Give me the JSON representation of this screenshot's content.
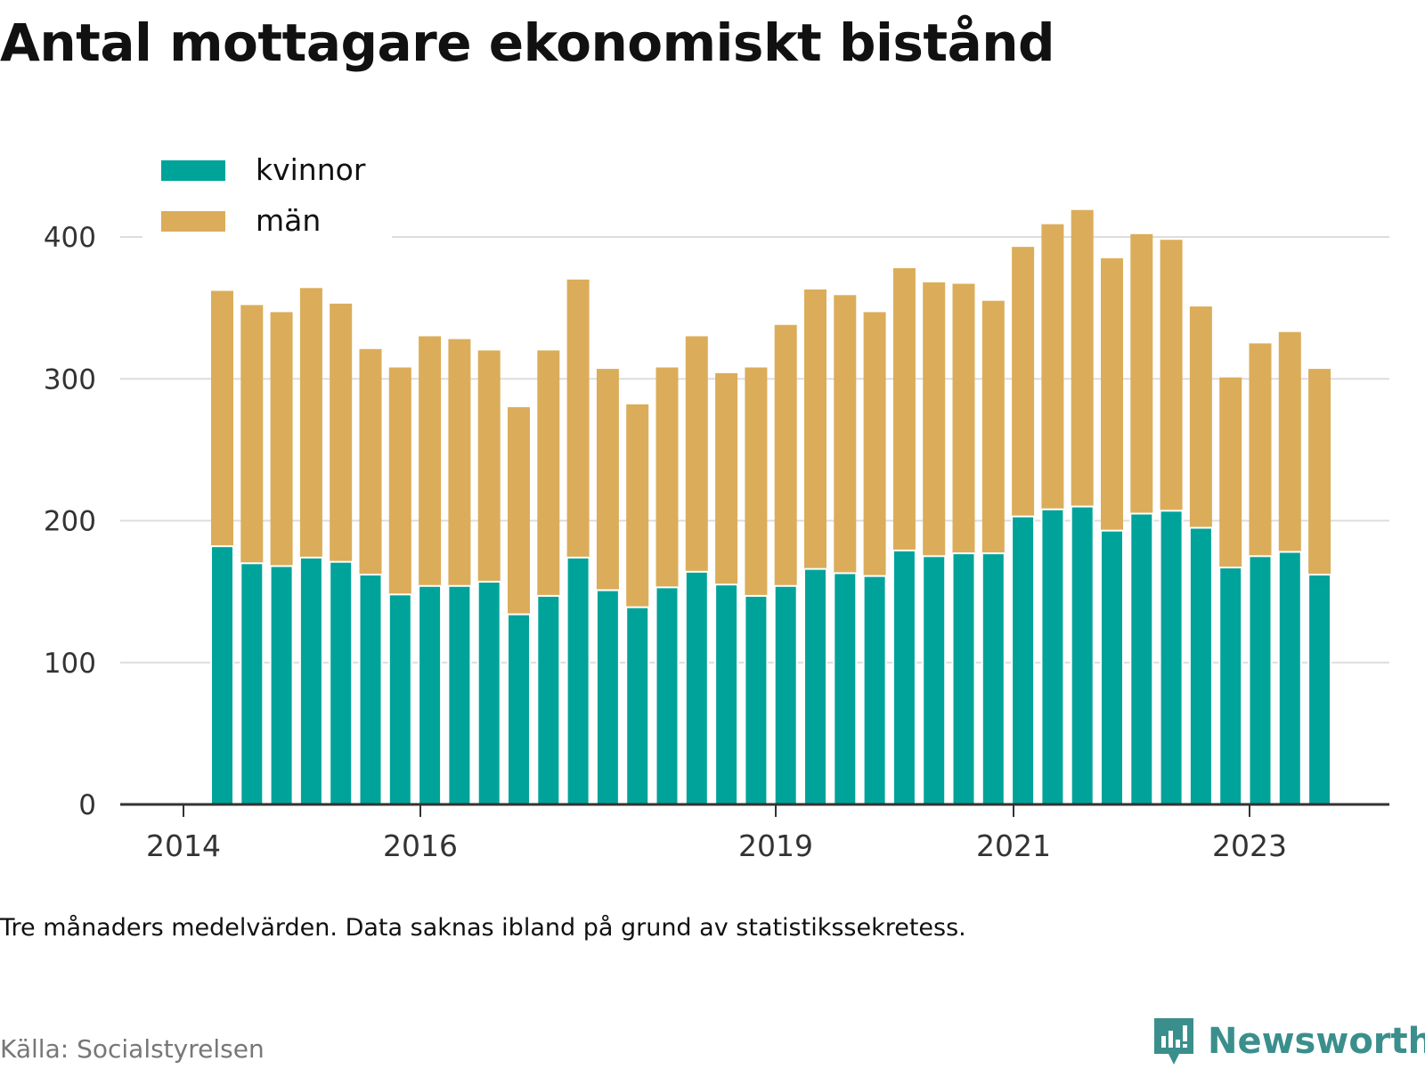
{
  "title": "Antal mottagare ekonomiskt bistånd",
  "note": "Tre månaders medelvärden. Data saknas ibland på grund av statistikssekretess.",
  "source": "Källa: Socialstyrelsen",
  "brand": {
    "name": "Newsworthy",
    "icon": "newsworthy-logo-icon",
    "color": "#3a8f8c"
  },
  "chart_data": {
    "type": "bar",
    "stacked": true,
    "x_ticks": [
      "2014",
      "2016",
      "2019",
      "2021",
      "2023"
    ],
    "y_ticks": [
      "0",
      "100",
      "200",
      "300",
      "400"
    ],
    "ylim": [
      0,
      430
    ],
    "grid": true,
    "legend_position": "top-left",
    "series": [
      {
        "name": "kvinnor",
        "color": "#00a39a",
        "values": [
          182,
          170,
          168,
          174,
          171,
          162,
          148,
          154,
          154,
          157,
          134,
          147,
          174,
          151,
          139,
          153,
          164,
          155,
          147,
          154,
          166,
          163,
          161,
          179,
          175,
          177,
          177,
          203,
          208,
          210,
          193,
          205,
          207,
          195,
          167,
          175,
          178,
          162
        ]
      },
      {
        "name": "män",
        "color": "#dbad5a",
        "values": [
          180,
          182,
          179,
          190,
          182,
          159,
          160,
          176,
          174,
          163,
          146,
          173,
          196,
          156,
          143,
          155,
          166,
          149,
          161,
          184,
          197,
          196,
          186,
          199,
          193,
          190,
          178,
          190,
          201,
          209,
          192,
          197,
          191,
          156,
          134,
          150,
          155,
          145
        ]
      }
    ]
  }
}
